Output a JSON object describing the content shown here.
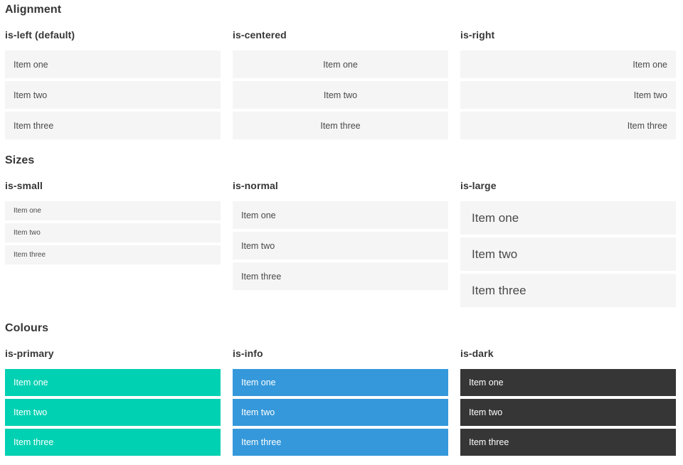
{
  "palette": {
    "background": "#ffffff",
    "item_background": "#f5f5f5",
    "item_text": "#4a4a4a",
    "heading_text": "#363636",
    "primary": "#00d1b2",
    "info": "#3498db",
    "dark": "#363636",
    "colored_item_text": "#ffffff"
  },
  "sections": [
    {
      "title": "Alignment",
      "groups": [
        {
          "label": "is-left (default)",
          "items": [
            "Item one",
            "Item two",
            "Item three"
          ]
        },
        {
          "label": "is-centered",
          "items": [
            "Item one",
            "Item two",
            "Item three"
          ]
        },
        {
          "label": "is-right",
          "items": [
            "Item one",
            "Item two",
            "Item three"
          ]
        }
      ]
    },
    {
      "title": "Sizes",
      "groups": [
        {
          "label": "is-small",
          "items": [
            "Item one",
            "Item two",
            "Item three"
          ]
        },
        {
          "label": "is-normal",
          "items": [
            "Item one",
            "Item two",
            "Item three"
          ]
        },
        {
          "label": "is-large",
          "items": [
            "Item one",
            "Item two",
            "Item three"
          ]
        }
      ]
    },
    {
      "title": "Colours",
      "groups": [
        {
          "label": "is-primary",
          "items": [
            "Item one",
            "Item two",
            "Item three"
          ]
        },
        {
          "label": "is-info",
          "items": [
            "Item one",
            "Item two",
            "Item three"
          ]
        },
        {
          "label": "is-dark",
          "items": [
            "Item one",
            "Item two",
            "Item three"
          ]
        }
      ]
    }
  ]
}
